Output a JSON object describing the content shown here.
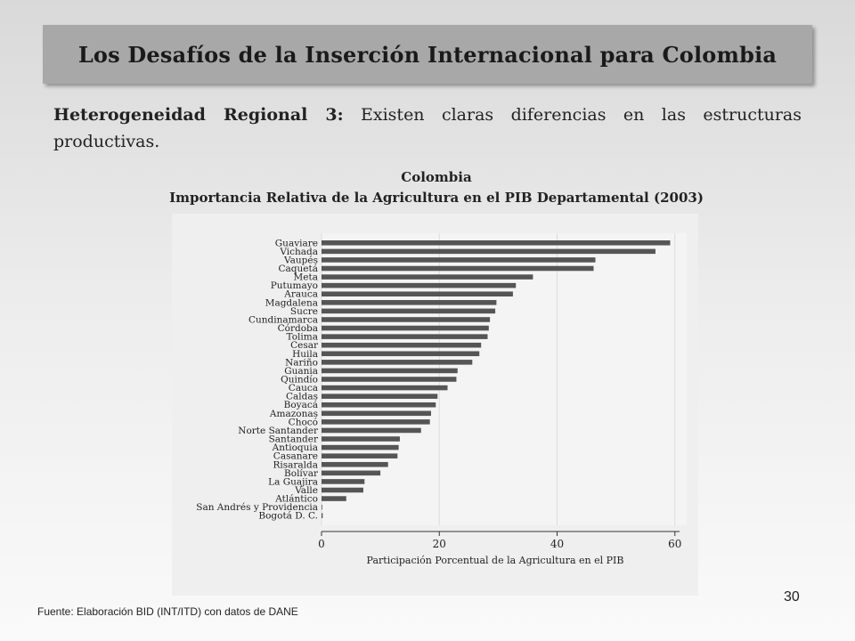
{
  "slide": {
    "title": "Los Desafíos de la Inserción Internacional para Colombia",
    "intro_bold": "Heterogeneidad Regional 3:",
    "intro_text": " Existen claras diferencias en las estructuras productivas.",
    "source": "Fuente: Elaboración BID (INT/ITD)  con datos de DANE",
    "page_number": "30"
  },
  "chart_data": {
    "type": "bar",
    "orientation": "horizontal",
    "title": "Colombia",
    "subtitle": "Importancia Relativa de la Agricultura en el PIB Departamental (2003)",
    "xlabel": "Participación Porcentual de la Agricultura en el PIB",
    "ylabel": "",
    "xlim": [
      0,
      62
    ],
    "xticks": [
      0,
      20,
      40,
      60
    ],
    "grid": "vertical",
    "bar_color": "#555555",
    "categories": [
      "Guaviare",
      "Vichada",
      "Vaupés",
      "Caquetá",
      "Meta",
      "Putumayo",
      "Arauca",
      "Magdalena",
      "Sucre",
      "Cundinamarca",
      "Córdoba",
      "Tolima",
      "Cesar",
      "Huila",
      "Nariño",
      "Guania",
      "Quindío",
      "Cauca",
      "Caldas",
      "Boyacá",
      "Amazonas",
      "Chocó",
      "Norte Santander",
      "Santander",
      "Antioquia",
      "Casanare",
      "Risaralda",
      "Bolívar",
      "La Guajira",
      "Valle",
      "Atlántico",
      "San Andrés y Providencia",
      "Bogotá D. C."
    ],
    "values": [
      59.2,
      56.7,
      46.5,
      46.2,
      35.9,
      33.0,
      32.5,
      29.7,
      29.5,
      28.6,
      28.4,
      28.2,
      27.1,
      26.8,
      25.6,
      23.1,
      22.9,
      21.4,
      19.7,
      19.4,
      18.6,
      18.4,
      16.9,
      13.3,
      13.1,
      12.9,
      11.3,
      10.0,
      7.3,
      7.1,
      4.2,
      0.1,
      0.2
    ]
  }
}
